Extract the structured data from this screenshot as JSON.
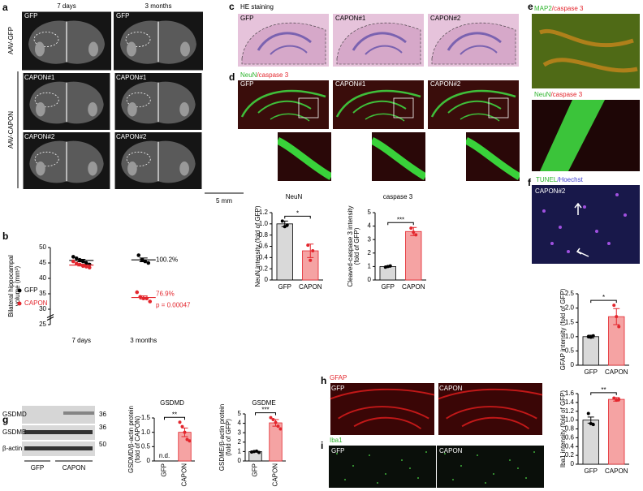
{
  "panels": {
    "a": {
      "letter": "a",
      "columns": [
        "7 days",
        "3 months"
      ],
      "groups": [
        "AAV-GFP",
        "AAV-CAPON"
      ],
      "images": [
        [
          "GFP",
          "GFP"
        ],
        [
          "CAPON#1",
          "CAPON#1"
        ],
        [
          "CAPON#2",
          "CAPON#2"
        ]
      ],
      "scale_bar": "5 mm"
    },
    "b": {
      "letter": "b"
    },
    "c": {
      "letter": "c",
      "title": "HE staining",
      "images": [
        "GFP",
        "CAPON#1",
        "CAPON#2"
      ]
    },
    "d": {
      "letter": "d",
      "title": [
        "NeuN",
        "/caspase 3"
      ],
      "images": [
        "GFP",
        "CAPON#1",
        "CAPON#2"
      ]
    },
    "e": {
      "letter": "e",
      "titles": [
        [
          "MAP2",
          "/caspase 3"
        ],
        [
          "NeuN",
          "/caspase 3"
        ]
      ]
    },
    "f": {
      "letter": "f",
      "title": [
        "TUNEL",
        "/Hoechst"
      ],
      "image": "CAPON#2"
    },
    "g": {
      "letter": "g",
      "bands": [
        "GSDMD",
        "GSDME",
        "β-actin"
      ],
      "markers": [
        36,
        36,
        50
      ],
      "lanes": [
        "GFP",
        "CAPON"
      ]
    },
    "h": {
      "letter": "h",
      "title": "GFAP",
      "images": [
        "GFP",
        "CAPON"
      ]
    },
    "i": {
      "letter": "i",
      "title": "Iba1",
      "images": [
        "GFP",
        "CAPON"
      ]
    }
  },
  "chart_data": [
    {
      "type": "dot",
      "ylabel": [
        "Bilateral hippocampal",
        "volume (mm³)"
      ],
      "categories": [
        "7 days",
        "3 months"
      ],
      "series": [
        {
          "name": "GFP",
          "color": "#000000",
          "values": [
            [
              47,
              46.5,
              46,
              45.5,
              45,
              44.5
            ],
            [
              47.5,
              46,
              45.5,
              45
            ]
          ],
          "means": [
            45.8,
            46
          ],
          "errors": [
            0.4,
            0.6
          ]
        },
        {
          "name": "CAPON",
          "color": "#e3262d",
          "values": [
            [
              45.5,
              44.8,
              44.5,
              44,
              43.8,
              43.5
            ],
            [
              35.5,
              34,
              33.5,
              33.5,
              32.5
            ]
          ],
          "means": [
            44.3,
            33.8
          ],
          "errors": [
            0.3,
            0.5
          ]
        }
      ],
      "ylim": [
        25,
        50
      ],
      "yticks": [
        25,
        30,
        35,
        40,
        45,
        50
      ],
      "annotations": [
        {
          "text": "100.2%",
          "color": "#000000"
        },
        {
          "text": "76.9%",
          "color": "#e3262d"
        },
        {
          "text": "p = 0.00047",
          "color": "#e3262d"
        }
      ]
    },
    {
      "type": "bar",
      "title": "NeuN",
      "ylabel": "NeuN intensity (fold of GFP)",
      "categories": [
        "GFP",
        "CAPON"
      ],
      "values": [
        1.0,
        0.52
      ],
      "errors": [
        0.05,
        0.12
      ],
      "points": [
        [
          1.05,
          0.95,
          0.98
        ],
        [
          0.62,
          0.35,
          0.52
        ]
      ],
      "colors": [
        "#d9d9d9",
        "#f5a3a3"
      ],
      "edge_colors": [
        "#000000",
        "#e3262d"
      ],
      "ylim": [
        0,
        1.2
      ],
      "yticks": [
        0,
        0.2,
        0.4,
        0.6,
        0.8,
        {
          "value": 1,
          "label": "1.0"
        },
        1.2
      ],
      "significance": "*"
    },
    {
      "type": "bar",
      "title": "caspase 3",
      "ylabel": [
        "Cleaved-caspase 3 intensity",
        "(fold of GFP)"
      ],
      "categories": [
        "GFP",
        "CAPON"
      ],
      "values": [
        1.0,
        3.6
      ],
      "errors": [
        0.05,
        0.3
      ],
      "points": [
        [
          0.95,
          1.0,
          1.05
        ],
        [
          3.85,
          3.55,
          3.35
        ]
      ],
      "colors": [
        "#d9d9d9",
        "#f5a3a3"
      ],
      "edge_colors": [
        "#000000",
        "#e3262d"
      ],
      "ylim": [
        0,
        5
      ],
      "yticks": [
        0,
        1,
        2,
        3,
        4,
        5
      ],
      "significance": "***"
    },
    {
      "type": "bar",
      "title": "GSDMD",
      "ylabel": [
        "GSDMD/β-actin protein",
        "(fold of CAPON)"
      ],
      "categories": [
        "GFP",
        "CAPON"
      ],
      "values": [
        null,
        1.0
      ],
      "value_labels": [
        "n.d.",
        null
      ],
      "errors": [
        null,
        0.15
      ],
      "points": [
        [],
        [
          1.35,
          1.2,
          1.0,
          0.75,
          0.7
        ]
      ],
      "colors": [
        "#d9d9d9",
        "#f5a3a3"
      ],
      "edge_colors": [
        "#000000",
        "#e3262d"
      ],
      "ylim": [
        0,
        1.5
      ],
      "yticks": [
        0,
        0.5,
        {
          "value": 1,
          "label": "1.0"
        },
        1.5
      ],
      "significance": "**"
    },
    {
      "type": "bar",
      "title": "GSDME",
      "ylabel": [
        "GSDME/β-actin protein",
        "(fold of GFP)"
      ],
      "categories": [
        "GFP",
        "CAPON"
      ],
      "values": [
        1.0,
        4.05
      ],
      "errors": [
        0.05,
        0.35
      ],
      "points": [
        [
          0.95,
          1.0,
          1.05,
          0.9
        ],
        [
          4.6,
          4.4,
          4.1,
          3.7,
          3.4
        ]
      ],
      "colors": [
        "#d9d9d9",
        "#f5a3a3"
      ],
      "edge_colors": [
        "#000000",
        "#e3262d"
      ],
      "ylim": [
        0,
        5
      ],
      "yticks": [
        0,
        1,
        2,
        3,
        4,
        5
      ],
      "significance": "***"
    },
    {
      "type": "bar",
      "ylabel": "GFAP intensity (fold of GFP)",
      "categories": [
        "GFP",
        "CAPON"
      ],
      "values": [
        1.0,
        1.7
      ],
      "errors": [
        0.05,
        0.28
      ],
      "points": [
        [
          1.0,
          0.98,
          1.03
        ],
        [
          2.1,
          1.7,
          1.35
        ]
      ],
      "colors": [
        "#d9d9d9",
        "#f5a3a3"
      ],
      "edge_colors": [
        "#000000",
        "#e3262d"
      ],
      "ylim": [
        0,
        2.5
      ],
      "yticks": [
        0,
        0.5,
        {
          "value": 1,
          "label": "1.0"
        },
        1.5,
        {
          "value": 2,
          "label": "2.0"
        },
        2.5
      ],
      "significance": "*"
    },
    {
      "type": "bar",
      "ylabel": "Iba1 intensity (fold of GFP)",
      "categories": [
        "GFP",
        "CAPON"
      ],
      "values": [
        1.0,
        1.47
      ],
      "errors": [
        0.07,
        0.04
      ],
      "points": [
        [
          1.15,
          0.92,
          0.9
        ],
        [
          1.5,
          1.45,
          1.47
        ]
      ],
      "colors": [
        "#d9d9d9",
        "#f5a3a3"
      ],
      "edge_colors": [
        "#000000",
        "#e3262d"
      ],
      "ylim": [
        0,
        1.6
      ],
      "yticks": [
        0,
        0.2,
        0.4,
        0.6,
        0.8,
        {
          "value": 1,
          "label": "1.0"
        },
        1.2,
        1.4,
        1.6
      ],
      "significance": "**"
    }
  ]
}
